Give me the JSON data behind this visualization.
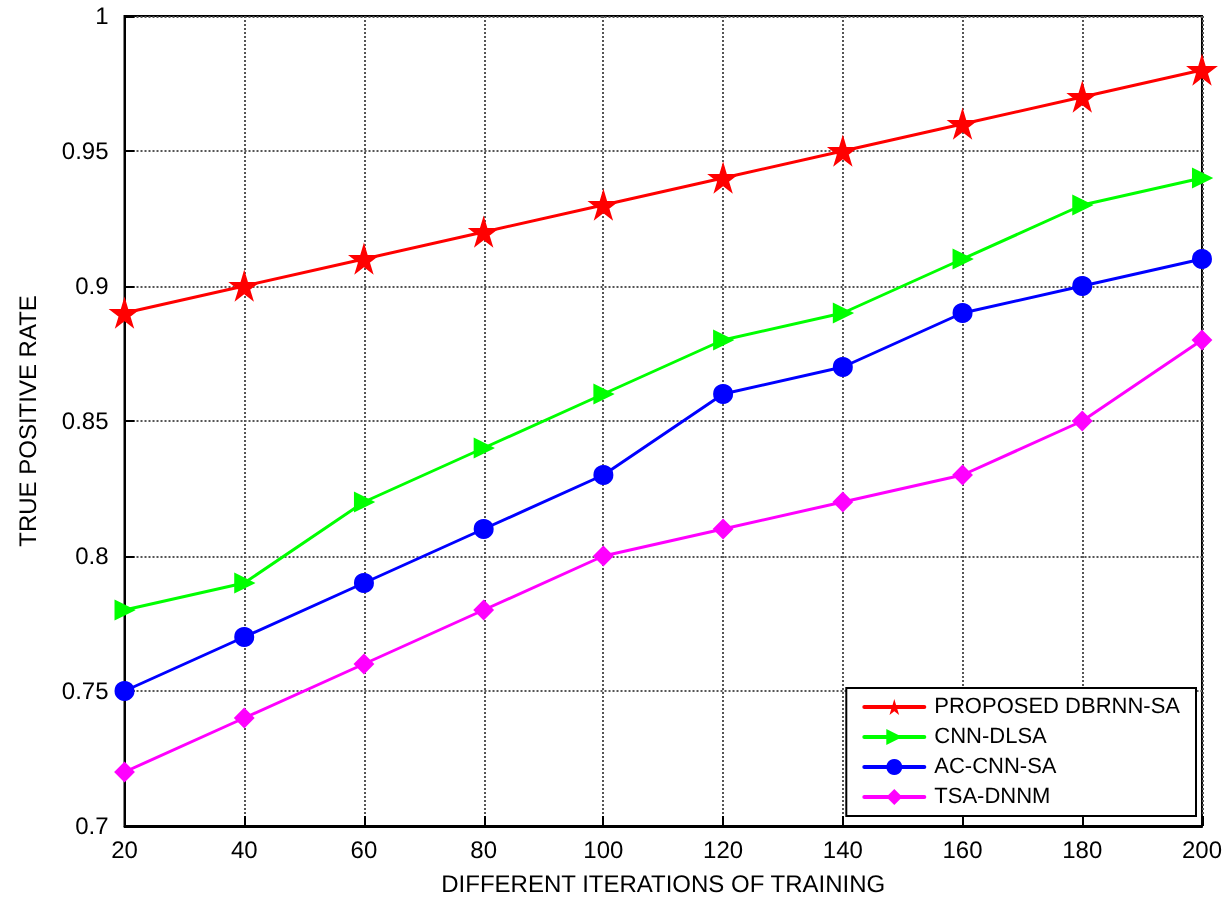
{
  "chart_data": {
    "type": "line",
    "xlabel": "DIFFERENT ITERATIONS OF TRAINING",
    "ylabel": "TRUE POSITIVE RATE",
    "x": [
      20,
      40,
      60,
      80,
      100,
      120,
      140,
      160,
      180,
      200
    ],
    "series": [
      {
        "name": "PROPOSED DBRNN-SA",
        "color": "#ff0000",
        "marker": "star",
        "values": [
          0.89,
          0.9,
          0.91,
          0.92,
          0.93,
          0.94,
          0.95,
          0.96,
          0.97,
          0.98
        ]
      },
      {
        "name": "CNN-DLSA",
        "color": "#00ff00",
        "marker": "triangle",
        "values": [
          0.78,
          0.79,
          0.82,
          0.84,
          0.86,
          0.88,
          0.89,
          0.91,
          0.93,
          0.94
        ]
      },
      {
        "name": "AC-CNN-SA",
        "color": "#0000ff",
        "marker": "circle",
        "values": [
          0.75,
          0.77,
          0.79,
          0.81,
          0.83,
          0.86,
          0.87,
          0.89,
          0.9,
          0.91
        ]
      },
      {
        "name": "TSA-DNNM",
        "color": "#ff00ff",
        "marker": "diamond",
        "values": [
          0.72,
          0.74,
          0.76,
          0.78,
          0.8,
          0.81,
          0.82,
          0.83,
          0.85,
          0.88
        ]
      }
    ],
    "xlim": [
      20,
      200
    ],
    "xticks": [
      20,
      40,
      60,
      80,
      100,
      120,
      140,
      160,
      180,
      200
    ],
    "ylim": [
      0.7,
      1
    ],
    "yticks": [
      0.7,
      0.75,
      0.8,
      0.85,
      0.9,
      0.95,
      1
    ],
    "grid": true,
    "legend": "bottom right",
    "line_style": "solid"
  }
}
